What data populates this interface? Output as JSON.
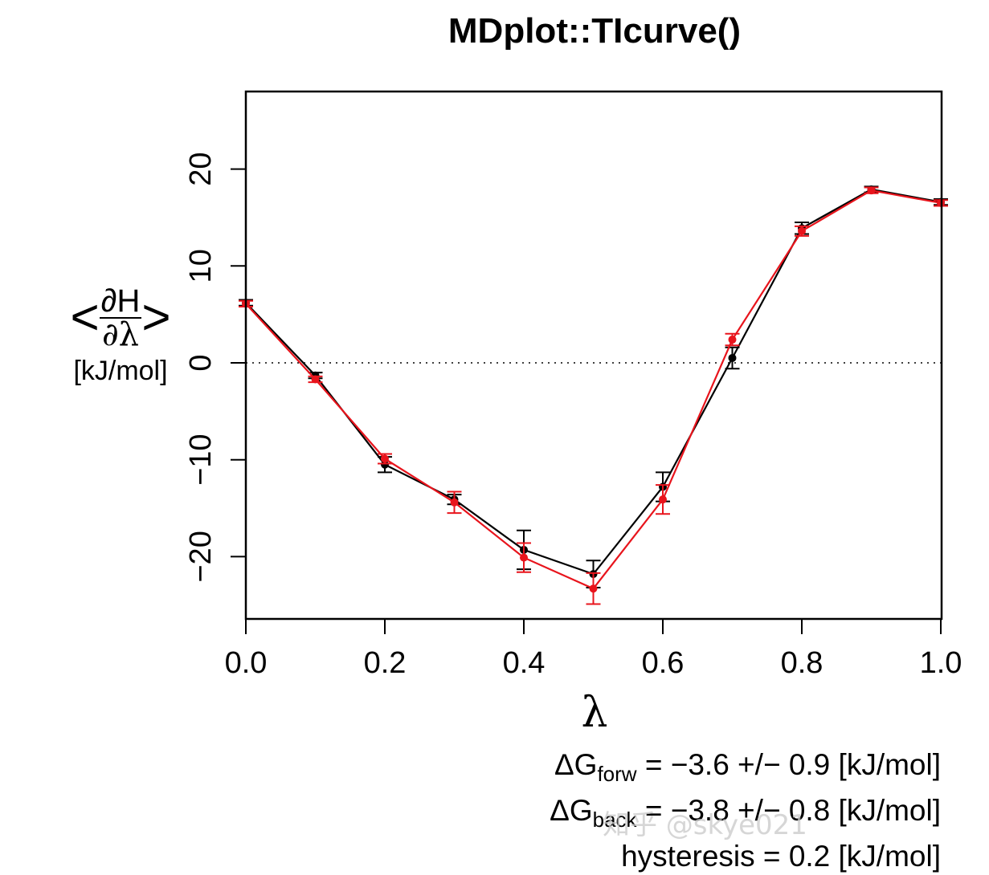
{
  "title": "MDplot::TIcurve()",
  "axes": {
    "xlabel": "λ",
    "ylabel_numerator": "∂H",
    "ylabel_denominator": "∂λ",
    "ylabel_left": "<",
    "ylabel_right": ">",
    "ylabel_unit": "[kJ/mol]",
    "xticks": [
      "0.0",
      "0.2",
      "0.4",
      "0.6",
      "0.8",
      "1.0"
    ],
    "yticks": [
      "−20",
      "−10",
      "0",
      "10",
      "20"
    ]
  },
  "stats": {
    "forw_label": "ΔG",
    "forw_sub": "forw",
    "forw_text": " = −3.6 +/− 0.9 [kJ/mol]",
    "back_label": "ΔG",
    "back_sub": "back",
    "back_text": " = −3.8 +/− 0.8 [kJ/mol]",
    "hysteresis_text": "hysteresis = 0.2 [kJ/mol]"
  },
  "watermark": "知乎 @skye021",
  "colors": {
    "forward": "#000000",
    "backward": "#e8141c",
    "zero_line": "#000000"
  },
  "chart_data": {
    "type": "line",
    "title": "MDplot::TIcurve()",
    "xlabel": "λ",
    "ylabel": "<∂H/∂λ> [kJ/mol]",
    "xlim": [
      0.0,
      1.0
    ],
    "ylim": [
      -26.5,
      28
    ],
    "grid": false,
    "legend": "none",
    "reference_line": {
      "y": 0,
      "style": "dotted"
    },
    "x": [
      0.0,
      0.1,
      0.2,
      0.3,
      0.4,
      0.5,
      0.6,
      0.7,
      0.8,
      0.9,
      1.0
    ],
    "series": [
      {
        "name": "forward",
        "color": "#000000",
        "values": [
          6.2,
          -1.3,
          -10.5,
          -14.1,
          -19.3,
          -21.8,
          -12.8,
          0.5,
          13.9,
          17.9,
          16.6
        ],
        "errors": [
          0.3,
          0.3,
          0.8,
          0.5,
          2.0,
          1.4,
          1.5,
          1.1,
          0.6,
          0.3,
          0.3
        ]
      },
      {
        "name": "backward",
        "color": "#e8141c",
        "values": [
          6.1,
          -1.7,
          -9.9,
          -14.4,
          -20.1,
          -23.3,
          -14.1,
          2.4,
          13.6,
          17.8,
          16.5
        ],
        "errors": [
          0.3,
          0.3,
          0.5,
          1.1,
          1.5,
          1.6,
          1.5,
          0.6,
          0.5,
          0.3,
          0.3
        ]
      }
    ],
    "annotations": [
      "ΔG_forw = −3.6 +/− 0.9 [kJ/mol]",
      "ΔG_back = −3.8 +/− 0.8 [kJ/mol]",
      "hysteresis = 0.2 [kJ/mol]"
    ]
  }
}
